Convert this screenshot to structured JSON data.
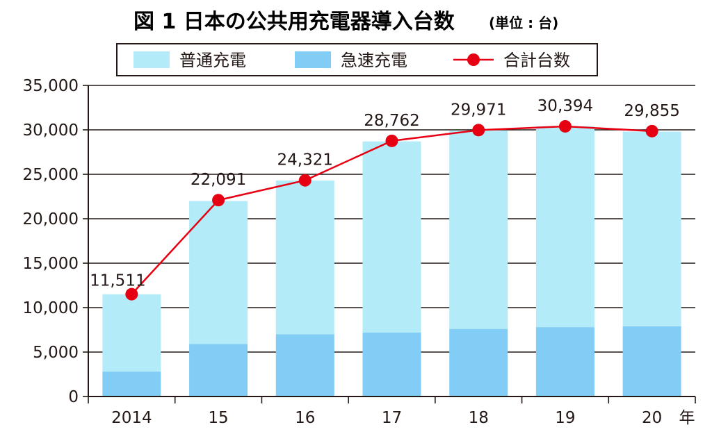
{
  "title": "図 1  日本の公共用充電器導入台数",
  "unit_note": "(単位 : 台)",
  "x_unit_label": "年",
  "colors": {
    "regular": "#b3ecf8",
    "rapid": "#82cdf5",
    "total_line": "#e60012",
    "grid": "#231815"
  },
  "chart_data": {
    "type": "bar",
    "stacked": true,
    "categories": [
      "2014",
      "15",
      "16",
      "17",
      "18",
      "19",
      "20"
    ],
    "series": [
      {
        "name": "普通充電",
        "kind": "bar",
        "values": [
          8700,
          16100,
          17300,
          21500,
          22300,
          22600,
          21900
        ]
      },
      {
        "name": "急速充電",
        "kind": "bar",
        "values": [
          2800,
          5900,
          7000,
          7200,
          7600,
          7800,
          7900
        ]
      },
      {
        "name": "合計台数",
        "kind": "line",
        "values": [
          11511,
          22091,
          24321,
          28762,
          29971,
          30394,
          29855
        ]
      }
    ],
    "data_labels": [
      "11,511",
      "22,091",
      "24,321",
      "28,762",
      "29,971",
      "30,394",
      "29,855"
    ],
    "y_ticks": [
      "0",
      "5,000",
      "10,000",
      "15,000",
      "20,000",
      "25,000",
      "30,000",
      "35,000"
    ],
    "ylim": [
      0,
      35000
    ],
    "grid": true,
    "legend_position": "top"
  }
}
